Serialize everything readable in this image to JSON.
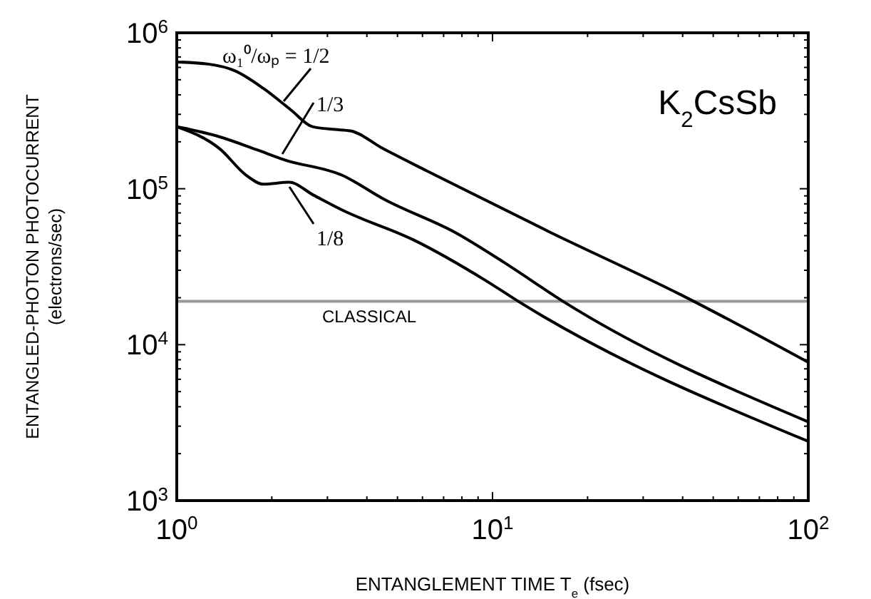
{
  "chart_data": {
    "type": "line",
    "xlabel": "ENTANGLEMENT TIME T$_{e}$ (fsec)",
    "ylabel": "ENTANGLED-PHOTON PHOTOCURRENT\n(electrons/sec)",
    "log": "xy",
    "grid": false,
    "legend": "top left",
    "line_style": "solid",
    "xlim": [
      1,
      100
    ],
    "ylim": [
      1000,
      1000000
    ],
    "xticks": [
      {
        "value": 1,
        "label": "10$^{0}$"
      },
      {
        "value": 2,
        "label": null
      },
      {
        "value": 3,
        "label": null
      },
      {
        "value": 4,
        "label": null
      },
      {
        "value": 5,
        "label": null
      },
      {
        "value": 6,
        "label": null
      },
      {
        "value": 7,
        "label": null
      },
      {
        "value": 8,
        "label": null
      },
      {
        "value": 9,
        "label": null
      },
      {
        "value": 10,
        "label": "10$^{1}$"
      },
      {
        "value": 20,
        "label": null
      },
      {
        "value": 30,
        "label": null
      },
      {
        "value": 40,
        "label": null
      },
      {
        "value": 50,
        "label": null
      },
      {
        "value": 60,
        "label": null
      },
      {
        "value": 70,
        "label": null
      },
      {
        "value": 80,
        "label": null
      },
      {
        "value": 90,
        "label": null
      },
      {
        "value": 100,
        "label": "10$^{2}$"
      }
    ],
    "yticks": [
      {
        "value": 1000,
        "label": "10$^{3}$"
      },
      {
        "value": 2000,
        "label": null
      },
      {
        "value": 3000,
        "label": null
      },
      {
        "value": 4000,
        "label": null
      },
      {
        "value": 5000,
        "label": null
      },
      {
        "value": 6000,
        "label": null
      },
      {
        "value": 7000,
        "label": null
      },
      {
        "value": 8000,
        "label": null
      },
      {
        "value": 9000,
        "label": null
      },
      {
        "value": 10000,
        "label": "10$^{4}$"
      },
      {
        "value": 20000,
        "label": null
      },
      {
        "value": 30000,
        "label": null
      },
      {
        "value": 40000,
        "label": null
      },
      {
        "value": 50000,
        "label": null
      },
      {
        "value": 60000,
        "label": null
      },
      {
        "value": 70000,
        "label": null
      },
      {
        "value": 80000,
        "label": null
      },
      {
        "value": 90000,
        "label": null
      },
      {
        "value": 100000,
        "label": "10$^{5}$"
      },
      {
        "value": 200000,
        "label": null
      },
      {
        "value": 300000,
        "label": null
      },
      {
        "value": 400000,
        "label": null
      },
      {
        "value": 500000,
        "label": null
      },
      {
        "value": 600000,
        "label": null
      },
      {
        "value": 700000,
        "label": null
      },
      {
        "value": 800000,
        "label": null
      },
      {
        "value": 900000,
        "label": null
      },
      {
        "value": 1000000,
        "label": "10$^{6}$"
      }
    ],
    "ref_lines": [
      {
        "axis": "y",
        "value": 19000,
        "label": "CLASSICAL",
        "color": "#999999"
      }
    ],
    "annotations": [
      "K$_{2}$CsSb"
    ],
    "series": [
      {
        "name": "ω₁⁰/ωₚ = 1/2",
        "color": "#000000",
        "x": [
          1,
          1.26,
          1.53,
          1.88,
          2.3,
          2.69,
          3.17,
          3.55,
          4.52,
          6.2,
          15.1,
          39.3,
          100
        ],
        "values": [
          650000,
          630000,
          570000,
          440000,
          320000,
          250000,
          240000,
          235000,
          180000,
          130000,
          53000,
          21000,
          7700
        ]
      },
      {
        "name": "1/3",
        "color": "#000000",
        "x": [
          1,
          1.37,
          1.79,
          2.2,
          3.34,
          4.56,
          7.67,
          10.8,
          16.9,
          100
        ],
        "values": [
          250000,
          215000,
          178000,
          153000,
          122000,
          85000,
          52000,
          34000,
          18700,
          3200
        ]
      },
      {
        "name": "1/8",
        "color": "#000000",
        "x": [
          1,
          1.37,
          1.66,
          1.88,
          2.27,
          2.71,
          3.34,
          5.62,
          9.45,
          12.2,
          100
        ],
        "values": [
          250000,
          180000,
          122000,
          107000,
          110000,
          91000,
          73000,
          47000,
          26000,
          18700,
          2400
        ]
      }
    ]
  }
}
